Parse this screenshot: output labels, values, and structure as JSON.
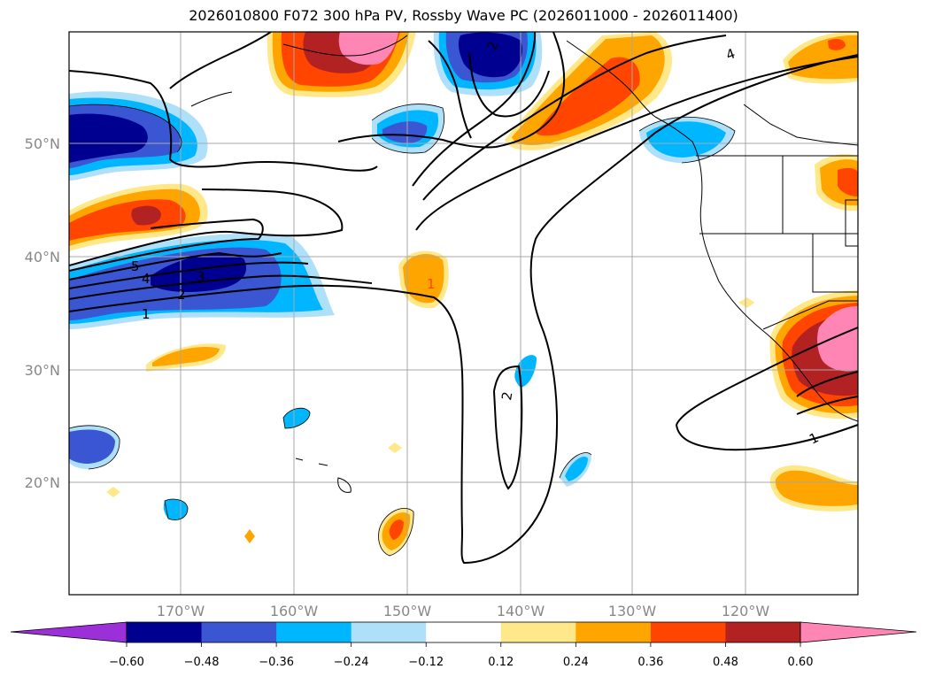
{
  "title": "2026010800 F072 300 hPa PV, Rossby Wave PC (2026011000 - 2026011400)",
  "map": {
    "lon_labels": [
      "170°W",
      "160°W",
      "150°W",
      "140°W",
      "130°W",
      "120°W"
    ],
    "lat_labels": [
      "50°N",
      "40°N",
      "30°N",
      "20°N"
    ],
    "contour_labels": [
      "5",
      "4",
      "3",
      "2",
      "1",
      "2",
      "1",
      "1",
      "2",
      "4"
    ]
  },
  "colorbar": {
    "ticks": [
      "−0.60",
      "−0.48",
      "−0.36",
      "−0.24",
      "−0.12",
      "0.12",
      "0.24",
      "0.36",
      "0.48",
      "0.60"
    ],
    "colors": [
      "#9b30d9",
      "#000090",
      "#3a56d2",
      "#00b7ff",
      "#aee0fa",
      "#ffffff",
      "#ffe88a",
      "#ffa500",
      "#ff4500",
      "#b22222",
      "#ff85b5",
      "#ff85b5"
    ]
  }
}
